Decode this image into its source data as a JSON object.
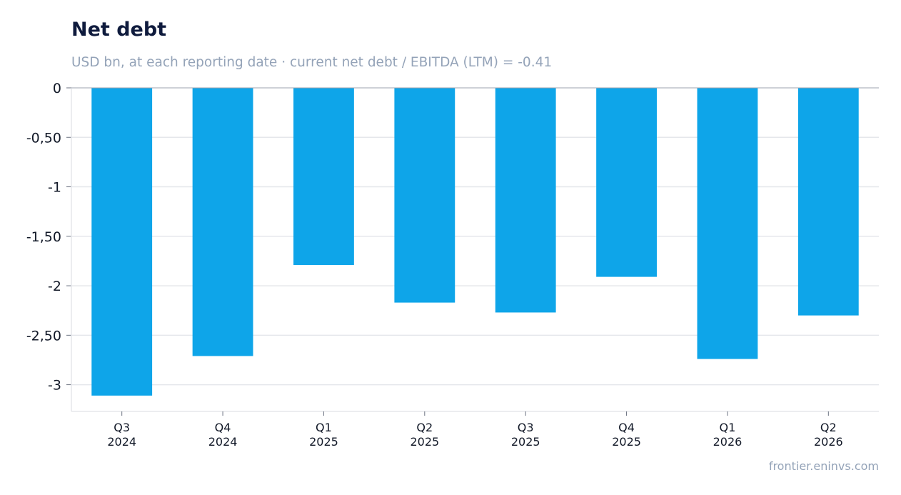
{
  "chart_data": {
    "type": "bar",
    "title": "Net debt",
    "subtitle": "USD bn, at each reporting date · current net debt / EBITDA (LTM) = -0.41",
    "categories": [
      [
        "Q3",
        "2024"
      ],
      [
        "Q4",
        "2024"
      ],
      [
        "Q1",
        "2025"
      ],
      [
        "Q2",
        "2025"
      ],
      [
        "Q3",
        "2025"
      ],
      [
        "Q4",
        "2025"
      ],
      [
        "Q1",
        "2026"
      ],
      [
        "Q2",
        "2026"
      ]
    ],
    "values": [
      -3.11,
      -2.71,
      -1.79,
      -2.17,
      -2.27,
      -1.91,
      -2.74,
      -2.3
    ],
    "ylim": [
      -3.27,
      0
    ],
    "yticks": [
      0,
      -0.5,
      -1,
      -1.5,
      -2,
      -2.5,
      -3
    ],
    "ytick_labels": [
      "0",
      "-0,50",
      "-1",
      "-1,50",
      "-2",
      "-2,50",
      "-3"
    ],
    "grid": true,
    "bar_color": "#0ea5e9"
  },
  "credit": "frontier.eninvs.com"
}
